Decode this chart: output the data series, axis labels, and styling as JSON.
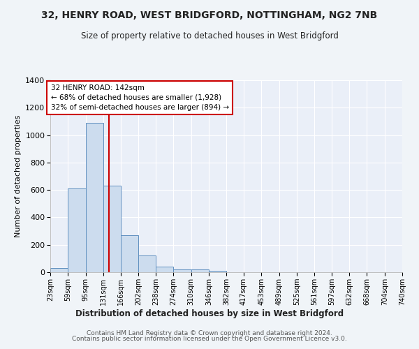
{
  "title": "32, HENRY ROAD, WEST BRIDGFORD, NOTTINGHAM, NG2 7NB",
  "subtitle": "Size of property relative to detached houses in West Bridgford",
  "xlabel": "Distribution of detached houses by size in West Bridgford",
  "ylabel": "Number of detached properties",
  "bin_labels": [
    "23sqm",
    "59sqm",
    "95sqm",
    "131sqm",
    "166sqm",
    "202sqm",
    "238sqm",
    "274sqm",
    "310sqm",
    "346sqm",
    "382sqm",
    "417sqm",
    "453sqm",
    "489sqm",
    "525sqm",
    "561sqm",
    "597sqm",
    "632sqm",
    "668sqm",
    "704sqm",
    "740sqm"
  ],
  "bin_edges": [
    23,
    59,
    95,
    131,
    166,
    202,
    238,
    274,
    310,
    346,
    382,
    417,
    453,
    489,
    525,
    561,
    597,
    632,
    668,
    704,
    740
  ],
  "bar_heights": [
    30,
    610,
    1090,
    630,
    270,
    120,
    40,
    20,
    20,
    10,
    0,
    0,
    0,
    0,
    0,
    0,
    0,
    0,
    0,
    0
  ],
  "property_size": 142,
  "property_line_color": "#cc0000",
  "bar_face_color": "#ccdcee",
  "bar_edge_color": "#6090c0",
  "annotation_line1": "32 HENRY ROAD: 142sqm",
  "annotation_line2": "← 68% of detached houses are smaller (1,928)",
  "annotation_line3": "32% of semi-detached houses are larger (894) →",
  "annotation_box_color": "#ffffff",
  "annotation_box_edge_color": "#cc0000",
  "ylim": [
    0,
    1400
  ],
  "yticks": [
    0,
    200,
    400,
    600,
    800,
    1000,
    1200,
    1400
  ],
  "background_color": "#eaeff8",
  "grid_color": "#ffffff",
  "footer_line1": "Contains HM Land Registry data © Crown copyright and database right 2024.",
  "footer_line2": "Contains public sector information licensed under the Open Government Licence v3.0."
}
